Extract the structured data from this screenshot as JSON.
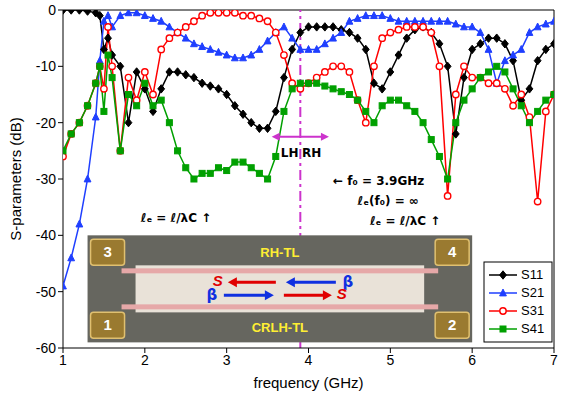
{
  "chart_data": {
    "type": "line",
    "x_label": "frequency (GHz)",
    "y_label": "S-parameters (dB)",
    "xlim": [
      1,
      7
    ],
    "ylim": [
      -60,
      0
    ],
    "xticks": [
      1,
      2,
      3,
      4,
      5,
      6,
      7
    ],
    "yticks": [
      -60,
      -50,
      -40,
      -30,
      -20,
      -10,
      0
    ],
    "legend": "lower right",
    "x": [
      1,
      1.1,
      1.2,
      1.3,
      1.4,
      1.45,
      1.5,
      1.55,
      1.6,
      1.7,
      1.8,
      1.9,
      2,
      2.1,
      2.2,
      2.3,
      2.4,
      2.5,
      2.6,
      2.7,
      2.8,
      2.9,
      3,
      3.1,
      3.2,
      3.3,
      3.4,
      3.5,
      3.6,
      3.7,
      3.8,
      3.9,
      4,
      4.1,
      4.2,
      4.3,
      4.4,
      4.5,
      4.6,
      4.7,
      4.8,
      4.9,
      5,
      5.1,
      5.2,
      5.3,
      5.4,
      5.5,
      5.6,
      5.7,
      5.8,
      5.9,
      6,
      6.1,
      6.2,
      6.3,
      6.4,
      6.5,
      6.6,
      6.7,
      6.8,
      6.9,
      7
    ],
    "series": [
      {
        "name": "S11",
        "color": "#000000",
        "marker": "diamond",
        "line_style": "solid",
        "values": [
          0,
          0,
          0,
          -0.2,
          -0.5,
          -1,
          -7,
          -5,
          -8,
          -10,
          -20,
          -11,
          -14,
          -18,
          -14,
          -11,
          -11,
          -11.5,
          -12,
          -13,
          -13.5,
          -14,
          -15,
          -17,
          -18.5,
          -20,
          -21,
          -21,
          -18,
          -12,
          -7,
          -4,
          -3,
          -3,
          -3,
          -3,
          -3.5,
          -4,
          -5,
          -7,
          -13,
          -14,
          -11,
          -8,
          -5,
          -3.5,
          -3,
          -4,
          -6,
          -10,
          -22,
          -12,
          -7,
          -6,
          -5,
          -5,
          -6,
          -9,
          -16,
          -14,
          -9,
          -7,
          -6
        ]
      },
      {
        "name": "S21",
        "color": "#1f3fff",
        "marker": "triangle",
        "line_style": "solid",
        "values": [
          -49,
          -44,
          -38,
          -30,
          -19,
          -9,
          -2,
          -1,
          -3,
          -1,
          -0.5,
          -0.5,
          -1,
          -1.5,
          -2,
          -3,
          -4,
          -5,
          -6,
          -6.5,
          -7,
          -7.5,
          -8,
          -8.5,
          -8.5,
          -8,
          -7,
          -5.5,
          -4,
          -3,
          -5,
          -7,
          -7,
          -7,
          -6,
          -5,
          -4,
          -2,
          -1.5,
          -1,
          -1,
          -1,
          -1.5,
          -2,
          -2,
          -2,
          -2,
          -2,
          -2,
          -2,
          -2.5,
          -3,
          -3,
          -4,
          -7,
          -13,
          -9,
          -8,
          -7,
          -4,
          -3,
          -2.5,
          -2
        ]
      },
      {
        "name": "S31",
        "color": "#ff0000",
        "marker": "open_circle",
        "line_style": "solid",
        "values": [
          -26,
          -22,
          -20,
          -17,
          -13,
          -10,
          -14,
          -3,
          -10,
          -25,
          -12,
          -16,
          -11,
          -15,
          -7,
          -5,
          -4,
          -3,
          -2,
          -1,
          -0.5,
          -0.5,
          -0.5,
          -0.5,
          -1,
          -1,
          -1.5,
          -2,
          -4,
          -8,
          -13,
          -14,
          -13,
          -12,
          -11,
          -10,
          -10,
          -11,
          -16,
          -20,
          -10,
          -5,
          -4,
          -3.5,
          -3,
          -3,
          -3,
          -4,
          -10,
          -33,
          -15,
          -10,
          -12,
          -12,
          -13,
          -13,
          -14,
          -17,
          -15,
          -19,
          -34,
          -18,
          -15
        ]
      },
      {
        "name": "S41",
        "color": "#00a000",
        "marker": "square",
        "line_style": "solid",
        "values": [
          -25,
          -22,
          -20,
          -17,
          -13,
          -10,
          -18,
          -8,
          -12,
          -25,
          -15,
          -17,
          -13,
          -17,
          -16,
          -20,
          -25,
          -28,
          -30,
          -29,
          -29,
          -28,
          -28.5,
          -27,
          -27,
          -28,
          -29,
          -30,
          -26,
          -18,
          -14,
          -13,
          -13,
          -13,
          -13.5,
          -14,
          -14.5,
          -15,
          -16,
          -18,
          -20,
          -17,
          -16,
          -16,
          -17,
          -18,
          -20,
          -23,
          -26,
          -30,
          -20,
          -16,
          -14,
          -12,
          -11,
          -10,
          -11,
          -14,
          -17,
          -20,
          -18,
          -16,
          -15
        ]
      }
    ],
    "vline": {
      "x": 3.9,
      "color": "#cc33cc",
      "line_style": "dashdot"
    },
    "span": {
      "x": [
        3.55,
        4.25
      ],
      "y": -22.5,
      "color": "#cc33cc"
    },
    "annotations": [
      {
        "text": "LH",
        "x": 3.77,
        "y": -25.5
      },
      {
        "text": "RH",
        "x": 4.04,
        "y": -25.5
      },
      {
        "text": "← f₀ = 3.9GHz",
        "x": 4.3,
        "y": -30.5
      },
      {
        "text": "ℓₑ(f₀) = ∞",
        "x": 4.6,
        "y": -34
      },
      {
        "text": "ℓₑ = ℓ/λC ↑",
        "x": 1.95,
        "y": -37
      },
      {
        "text": "ℓₑ = ℓ/λC ↑",
        "x": 4.75,
        "y": -37.5
      }
    ],
    "inset": {
      "ports": {
        "top_left": "3",
        "top_right": "4",
        "bottom_left": "1",
        "bottom_right": "2"
      },
      "top_line": "RH-TL",
      "bottom_line": "CRLH-TL",
      "wave_label": "S",
      "phase_label": "β"
    }
  }
}
